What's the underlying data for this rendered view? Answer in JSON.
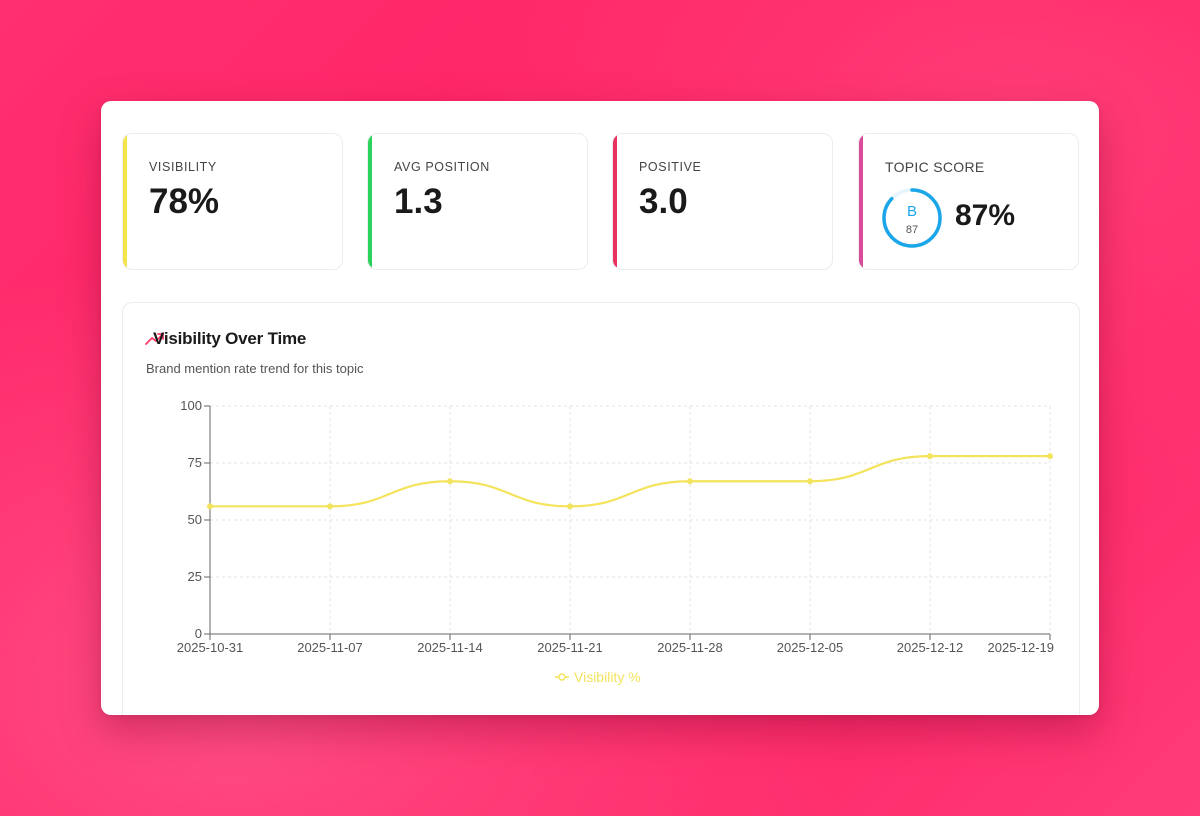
{
  "stats": [
    {
      "label": "VISIBILITY",
      "value": "78%",
      "accent": "#f5e34a"
    },
    {
      "label": "AVG POSITION",
      "value": "1.3",
      "accent": "#2bd35c"
    },
    {
      "label": "POSITIVE",
      "value": "3.0",
      "accent": "#e8335f"
    }
  ],
  "topic_score": {
    "label": "TOPIC SCORE",
    "grade": "B",
    "score": "87",
    "score_fraction": 0.87,
    "value": "87%",
    "accent": "#d94c9a",
    "gauge_color": "#1aa6e8"
  },
  "chart": {
    "title": "Visibility Over Time",
    "subtitle": "Brand mention rate trend for this topic",
    "icon": "trending-up-icon",
    "icon_color": "#ff3b6b"
  },
  "chart_data": {
    "type": "line",
    "x": [
      "2025-10-31",
      "2025-11-07",
      "2025-11-14",
      "2025-11-21",
      "2025-11-28",
      "2025-12-05",
      "2025-12-12",
      "2025-12-19"
    ],
    "series": [
      {
        "name": "Visibility %",
        "values": [
          56,
          56,
          67,
          56,
          67,
          67,
          78,
          78
        ],
        "color": "#f4e35c"
      }
    ],
    "yticks": [
      0,
      25,
      50,
      75,
      100
    ],
    "ylim": [
      0,
      100
    ],
    "grid": true,
    "legend": "bottom-center"
  }
}
